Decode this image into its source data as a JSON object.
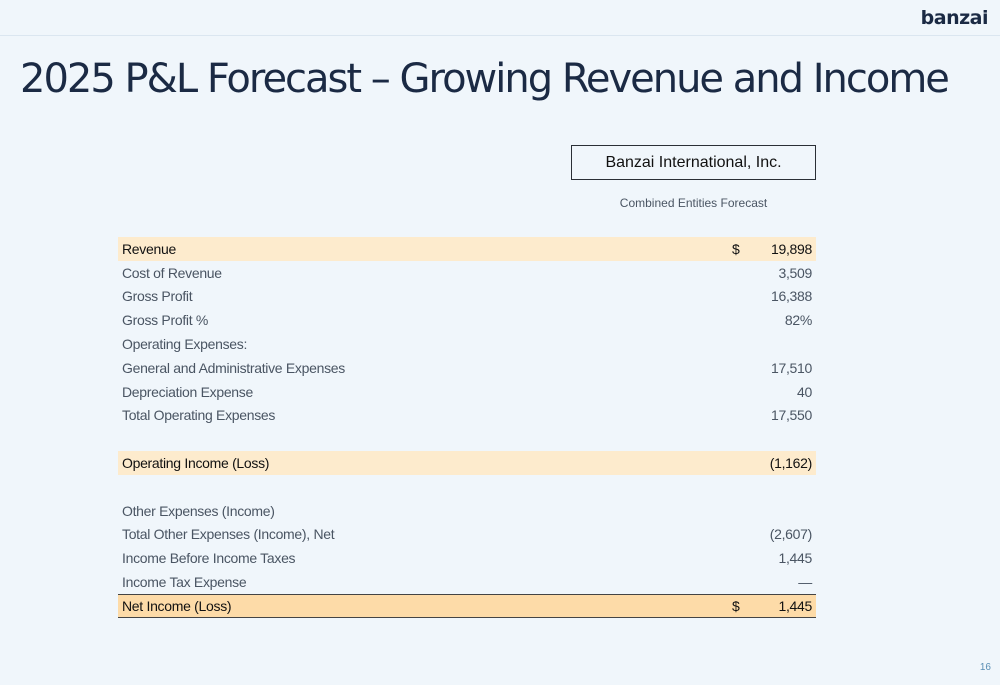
{
  "logo": "banzai",
  "title": "2025 P&L Forecast – Growing Revenue and Income",
  "entity": {
    "name": "Banzai International, Inc.",
    "subtitle": "Combined Entities Forecast"
  },
  "rows": [
    {
      "label": "Revenue",
      "currency": "$",
      "value": "19,898"
    },
    {
      "label": "Cost of Revenue",
      "currency": "",
      "value": "3,509"
    },
    {
      "label": "Gross Profit",
      "currency": "",
      "value": "16,388"
    },
    {
      "label": "Gross Profit %",
      "currency": "",
      "value": "82%"
    },
    {
      "label": "Operating Expenses:",
      "currency": "",
      "value": ""
    },
    {
      "label": "General and Administrative Expenses",
      "currency": "",
      "value": "17,510"
    },
    {
      "label": "Depreciation Expense",
      "currency": "",
      "value": "40"
    },
    {
      "label": "Total Operating Expenses",
      "currency": "",
      "value": "17,550"
    },
    {
      "label": "Operating Income (Loss)",
      "currency": "",
      "value": "(1,162)"
    },
    {
      "label": "Other Expenses (Income)",
      "currency": "",
      "value": ""
    },
    {
      "label": "Total Other Expenses (Income), Net",
      "currency": "",
      "value": "(2,607)"
    },
    {
      "label": "Income Before Income Taxes",
      "currency": "",
      "value": "1,445"
    },
    {
      "label": "Income Tax Expense",
      "currency": "",
      "value": "—"
    },
    {
      "label": "Net Income (Loss)",
      "currency": "$",
      "value": "1,445"
    }
  ],
  "page_number": "16"
}
